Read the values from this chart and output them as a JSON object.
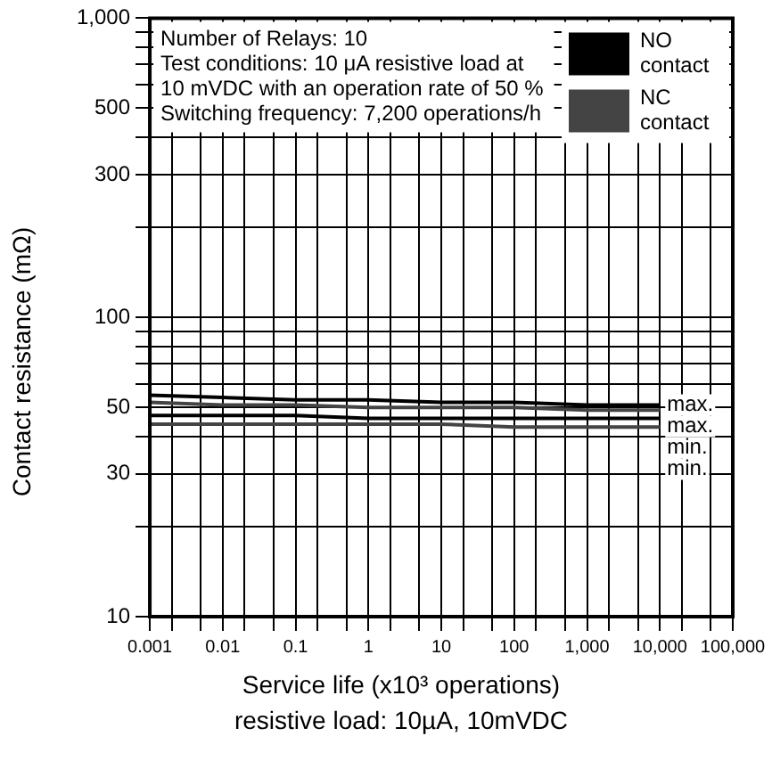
{
  "chart_data": {
    "type": "line",
    "xlabel": "Service life (x10³ operations)",
    "ylabel": "Contact resistance (mΩ)",
    "x": [
      0.001,
      0.01,
      0.1,
      1,
      10,
      100,
      1000,
      10000
    ],
    "series": [
      {
        "name": "NO contact",
        "color": "#000000",
        "values": [
          55,
          54,
          53,
          53,
          52,
          52,
          51,
          51
        ]
      },
      {
        "name": "NC contact",
        "color": "#444444",
        "values": [
          52,
          51,
          51,
          50,
          50,
          50,
          49,
          49
        ]
      },
      {
        "color": "#000000",
        "values": [
          47,
          47,
          47,
          46,
          46,
          46,
          46,
          46
        ]
      },
      {
        "color": "#444444",
        "values": [
          44,
          44,
          44,
          44,
          44,
          43,
          43,
          43
        ]
      }
    ],
    "log": "xy",
    "xlim": [
      0.001,
      100000
    ],
    "ylim": [
      10,
      1000
    ],
    "xticks": [
      0.001,
      0.01,
      0.1,
      1,
      10,
      100,
      {
        "value": 1000,
        "label": "1,000"
      },
      {
        "value": 10000,
        "label": "10,000"
      },
      {
        "value": 100000,
        "label": "100,000"
      },
      {
        "value": 0.002,
        "label": null
      },
      {
        "value": 0.005,
        "label": null
      },
      {
        "value": 0.02,
        "label": null
      },
      {
        "value": 0.05,
        "label": null
      },
      {
        "value": 0.2,
        "label": null
      },
      {
        "value": 0.5,
        "label": null
      },
      {
        "value": 2,
        "label": null
      },
      {
        "value": 5,
        "label": null
      },
      {
        "value": 20,
        "label": null
      },
      {
        "value": 50,
        "label": null
      },
      {
        "value": 200,
        "label": null
      },
      {
        "value": 500,
        "label": null
      },
      {
        "value": 2000,
        "label": null
      },
      {
        "value": 5000,
        "label": null
      },
      {
        "value": 20000,
        "label": null
      },
      {
        "value": 50000,
        "label": null
      }
    ],
    "yticks": [
      10,
      30,
      50,
      100,
      300,
      500,
      {
        "value": 1000,
        "label": "1,000"
      },
      {
        "value": 20,
        "label": null
      },
      {
        "value": 40,
        "label": null
      },
      {
        "value": 60,
        "label": null
      },
      {
        "value": 70,
        "label": null
      },
      {
        "value": 80,
        "label": null
      },
      {
        "value": 90,
        "label": null
      },
      {
        "value": 200,
        "label": null
      },
      {
        "value": 400,
        "label": null
      },
      {
        "value": 600,
        "label": null
      },
      {
        "value": 700,
        "label": null
      },
      {
        "value": 800,
        "label": null
      },
      {
        "value": 900,
        "label": null
      }
    ],
    "grid": true,
    "legend": "top right",
    "marker": "none",
    "line_style": "solid",
    "annotations": [
      "Number of Relays: 10\nTest conditions: 10 μA resistive load at\n10 mVDC with an operation rate of 50 %\nSwitching frequency: 7,200 operations/h",
      "max.",
      "max.",
      "min.",
      "min.",
      "resistive load: 10µA, 10mVDC"
    ]
  }
}
